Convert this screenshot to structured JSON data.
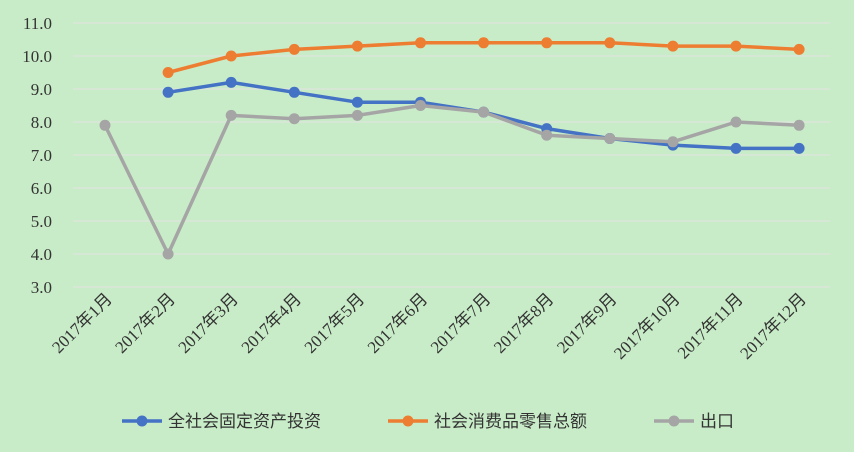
{
  "chart_data": {
    "type": "line",
    "categories": [
      "2017年1月",
      "2017年2月",
      "2017年3月",
      "2017年4月",
      "2017年5月",
      "2017年6月",
      "2017年7月",
      "2017年8月",
      "2017年9月",
      "2017年10月",
      "2017年11月",
      "2017年12月"
    ],
    "series": [
      {
        "name": "全社会固定资产投资",
        "color": "#4472c4",
        "values": [
          null,
          8.9,
          9.2,
          8.9,
          8.6,
          8.6,
          8.3,
          7.8,
          7.5,
          7.3,
          7.2,
          7.2
        ]
      },
      {
        "name": "社会消费品零售总额",
        "color": "#ed7d31",
        "values": [
          null,
          9.5,
          10.0,
          10.2,
          10.3,
          10.4,
          10.4,
          10.4,
          10.4,
          10.3,
          10.3,
          10.2
        ]
      },
      {
        "name": "出口",
        "color": "#a5a5a5",
        "values": [
          7.9,
          4.0,
          8.2,
          8.1,
          8.2,
          8.5,
          8.3,
          7.6,
          7.5,
          7.4,
          8.0,
          7.9
        ]
      }
    ],
    "ylim": [
      3.0,
      11.0
    ],
    "yticks": [
      "3.0",
      "4.0",
      "5.0",
      "6.0",
      "7.0",
      "8.0",
      "9.0",
      "10.0",
      "11.0"
    ],
    "grid": true,
    "legend": "bottom"
  }
}
